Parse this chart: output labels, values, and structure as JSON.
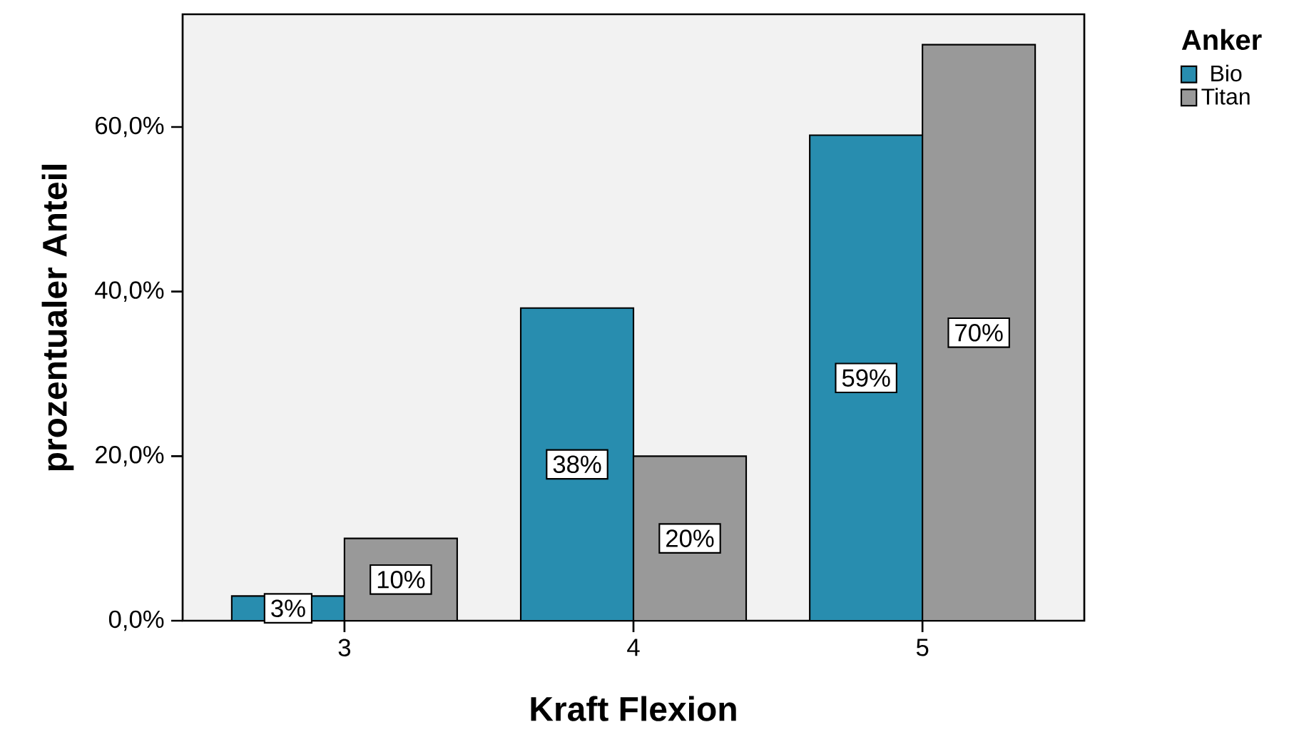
{
  "chart_data": {
    "type": "bar",
    "xlabel": "Kraft Flexion",
    "ylabel": "prozentualer Anteil",
    "legend_title": "Anker",
    "categories": [
      "3",
      "4",
      "5"
    ],
    "series": [
      {
        "name": "Bio",
        "color": "#288daf",
        "values": [
          3,
          38,
          59
        ],
        "value_labels": [
          "3%",
          "38%",
          "59%"
        ]
      },
      {
        "name": "Titan",
        "color": "#999999",
        "values": [
          10,
          20,
          70
        ],
        "value_labels": [
          "10%",
          "20%",
          "70%"
        ]
      }
    ],
    "ylim": [
      0,
      73.7
    ],
    "yticks": [
      {
        "value": 0,
        "label": "0,0%"
      },
      {
        "value": 20,
        "label": "20,0%"
      },
      {
        "value": 40,
        "label": "40,0%"
      },
      {
        "value": 60,
        "label": "60,0%"
      }
    ],
    "legend": "top right",
    "grid": false
  }
}
